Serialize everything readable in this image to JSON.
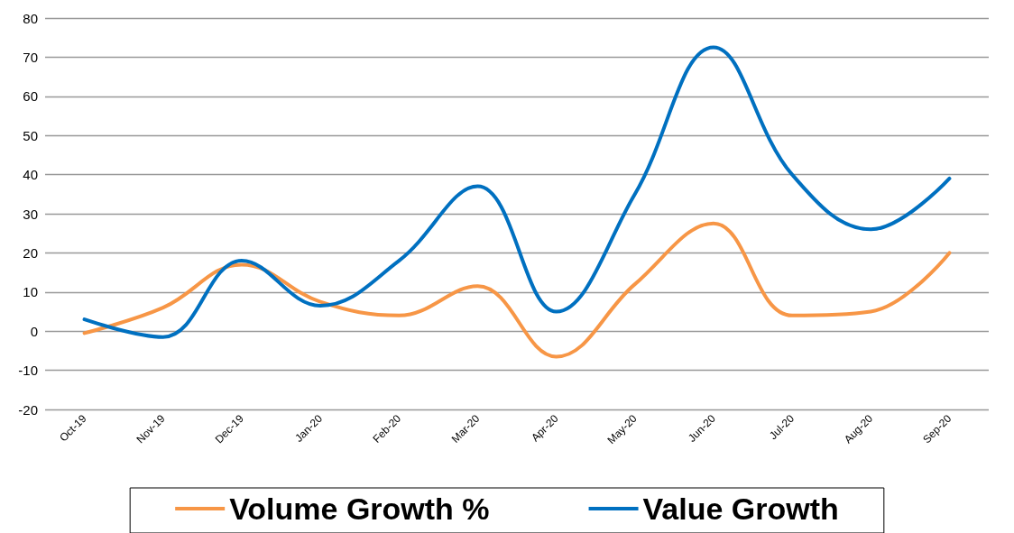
{
  "chart_data": {
    "type": "line",
    "categories": [
      "Oct-19",
      "Nov-19",
      "Dec-19",
      "Jan-20",
      "Feb-20",
      "Mar-20",
      "Apr-20",
      "May-20",
      "Jun-20",
      "Jul-20",
      "Aug-20",
      "Sep-20"
    ],
    "series": [
      {
        "name": "Volume Growth %",
        "color": "#f79646",
        "values": [
          -0.5,
          6,
          17,
          7.5,
          4,
          11.5,
          -6.5,
          12,
          27.5,
          4,
          5,
          20
        ]
      },
      {
        "name": "Value Growth",
        "color": "#0070c0",
        "values": [
          3,
          -1.5,
          18,
          6.5,
          18,
          37,
          5,
          35,
          72.5,
          40,
          26,
          39
        ]
      }
    ],
    "ylim": [
      -20,
      80
    ],
    "yticks": [
      -20,
      -10,
      0,
      10,
      20,
      30,
      40,
      50,
      60,
      70,
      80
    ],
    "grid": "y",
    "legend": "bottom",
    "marker": "none",
    "line_style": "solid"
  }
}
